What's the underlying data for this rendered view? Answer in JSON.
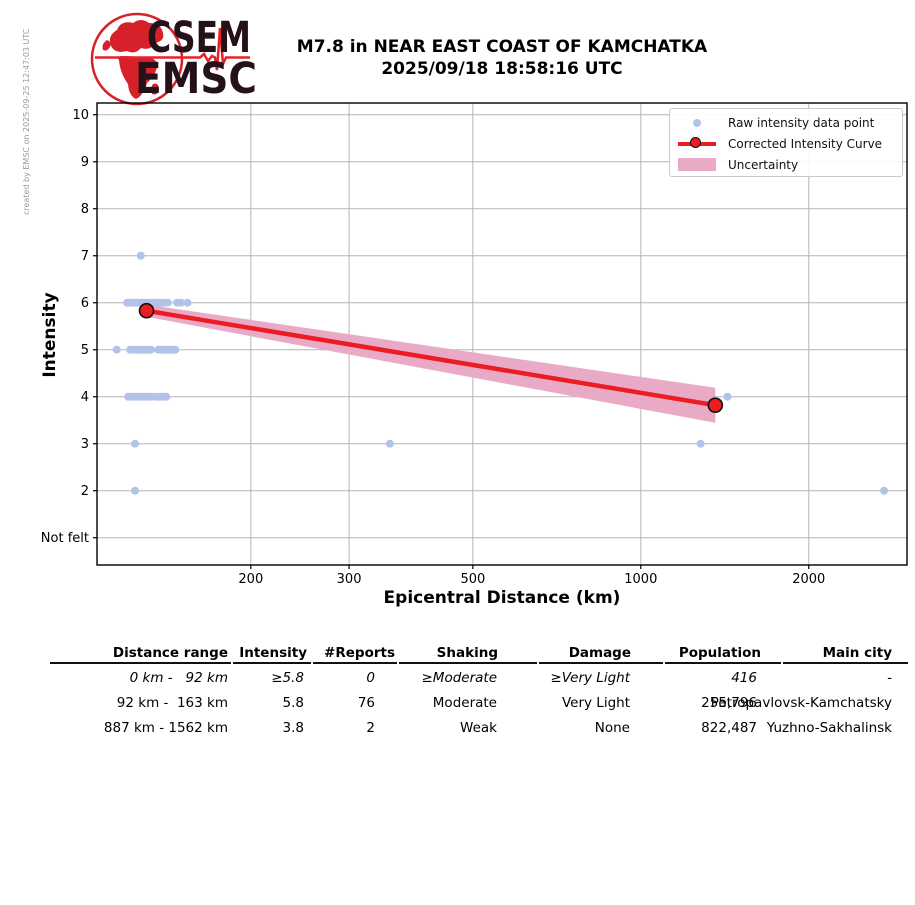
{
  "header": {
    "logo_top": "CSEM",
    "logo_bottom": "EMSC",
    "title_line1": "M7.8 in NEAR EAST COAST OF KAMCHATKA",
    "title_line2": "2025/09/18 18:58:16 UTC",
    "watermark": "created by EMSC on 2025-09-25 12:47:03 UTC"
  },
  "chart_data": {
    "type": "scatter",
    "title": "M7.8 in NEAR EAST COAST OF KAMCHATKA 2025/09/18 18:58:16 UTC",
    "xlabel": "Epicentral Distance (km)",
    "ylabel": "Intensity",
    "x_scale": "log",
    "xlim": [
      106,
      3000
    ],
    "ylim": [
      0.42,
      10.25
    ],
    "x_ticks": [
      200,
      300,
      500,
      1000,
      2000
    ],
    "y_ticks": [
      {
        "value": 1,
        "label": "Not felt"
      },
      {
        "value": 2,
        "label": "2"
      },
      {
        "value": 3,
        "label": "3"
      },
      {
        "value": 4,
        "label": "4"
      },
      {
        "value": 5,
        "label": "5"
      },
      {
        "value": 6,
        "label": "6"
      },
      {
        "value": 7,
        "label": "7"
      },
      {
        "value": 8,
        "label": "8"
      },
      {
        "value": 9,
        "label": "9"
      },
      {
        "value": 10,
        "label": "10"
      }
    ],
    "grid": true,
    "legend": {
      "position": "upper right",
      "entries": [
        {
          "label": "Raw intensity data point",
          "marker": "dot"
        },
        {
          "label": "Corrected Intensity Curve",
          "marker": "line-circle"
        },
        {
          "label": "Uncertainty",
          "marker": "patch"
        }
      ]
    },
    "raw_points": [
      [
        127,
        7
      ],
      [
        120,
        6
      ],
      [
        121.3,
        6
      ],
      [
        122.6,
        6
      ],
      [
        124,
        6
      ],
      [
        125.3,
        6
      ],
      [
        126.7,
        6
      ],
      [
        128,
        6
      ],
      [
        129.4,
        6
      ],
      [
        130.8,
        6
      ],
      [
        132.2,
        6
      ],
      [
        133.6,
        6
      ],
      [
        135,
        6
      ],
      [
        136.5,
        6
      ],
      [
        138,
        6
      ],
      [
        139.5,
        6
      ],
      [
        142,
        6
      ],
      [
        147.5,
        6
      ],
      [
        150,
        6
      ],
      [
        154,
        6
      ],
      [
        115,
        5
      ],
      [
        121.5,
        5
      ],
      [
        122.8,
        5
      ],
      [
        124.1,
        5
      ],
      [
        125.4,
        5
      ],
      [
        126.8,
        5
      ],
      [
        128.2,
        5
      ],
      [
        129.6,
        5
      ],
      [
        131,
        5
      ],
      [
        132.4,
        5
      ],
      [
        136.5,
        5
      ],
      [
        137.9,
        5
      ],
      [
        139.3,
        5
      ],
      [
        140.7,
        5
      ],
      [
        142.1,
        5
      ],
      [
        143.5,
        5
      ],
      [
        145,
        5
      ],
      [
        146.5,
        5
      ],
      [
        120.5,
        4
      ],
      [
        121.8,
        4
      ],
      [
        123.1,
        4
      ],
      [
        124.4,
        4
      ],
      [
        125.7,
        4
      ],
      [
        127,
        4
      ],
      [
        128.4,
        4
      ],
      [
        129.8,
        4
      ],
      [
        131.8,
        4
      ],
      [
        133,
        4
      ],
      [
        135.5,
        4
      ],
      [
        136.9,
        4
      ],
      [
        138.3,
        4
      ],
      [
        139.7,
        4
      ],
      [
        141.1,
        4
      ],
      [
        1430,
        4
      ],
      [
        124,
        3
      ],
      [
        355,
        3
      ],
      [
        1280,
        3
      ],
      [
        124,
        2
      ],
      [
        2730,
        2
      ]
    ],
    "corrected_curve": [
      [
        130,
        5.83
      ],
      [
        1360,
        3.82
      ]
    ],
    "uncertainty_band": [
      [
        130,
        5.7,
        5.96
      ],
      [
        1360,
        3.445,
        4.19
      ]
    ],
    "colors": {
      "raw_point": "#b2c3e9",
      "curve": "#ec1c24",
      "band": "#e9aac6",
      "grid": "#b5b5b5",
      "logo_red": "#d6202a",
      "logo_dark": "#251118",
      "watermark": "#9a9a9a"
    }
  },
  "table": {
    "columns": [
      "Distance range",
      "Intensity",
      "#Reports",
      "Shaking",
      "Damage",
      "Population",
      "Main city"
    ],
    "rows": [
      {
        "italic": true,
        "cells": [
          "0 km -   92 km",
          "≥5.8",
          "0",
          "≥Moderate",
          "≥Very Light",
          "416",
          "-"
        ]
      },
      {
        "italic": false,
        "cells": [
          "92 km -  163 km",
          "5.8",
          "76",
          "Moderate",
          "Very Light",
          "255,796",
          "Petropavlovsk-Kamchatsky"
        ]
      },
      {
        "italic": false,
        "cells": [
          "887 km - 1562 km",
          "3.8",
          "2",
          "Weak",
          "None",
          "822,487",
          "Yuzhno-Sakhalinsk"
        ]
      }
    ]
  }
}
